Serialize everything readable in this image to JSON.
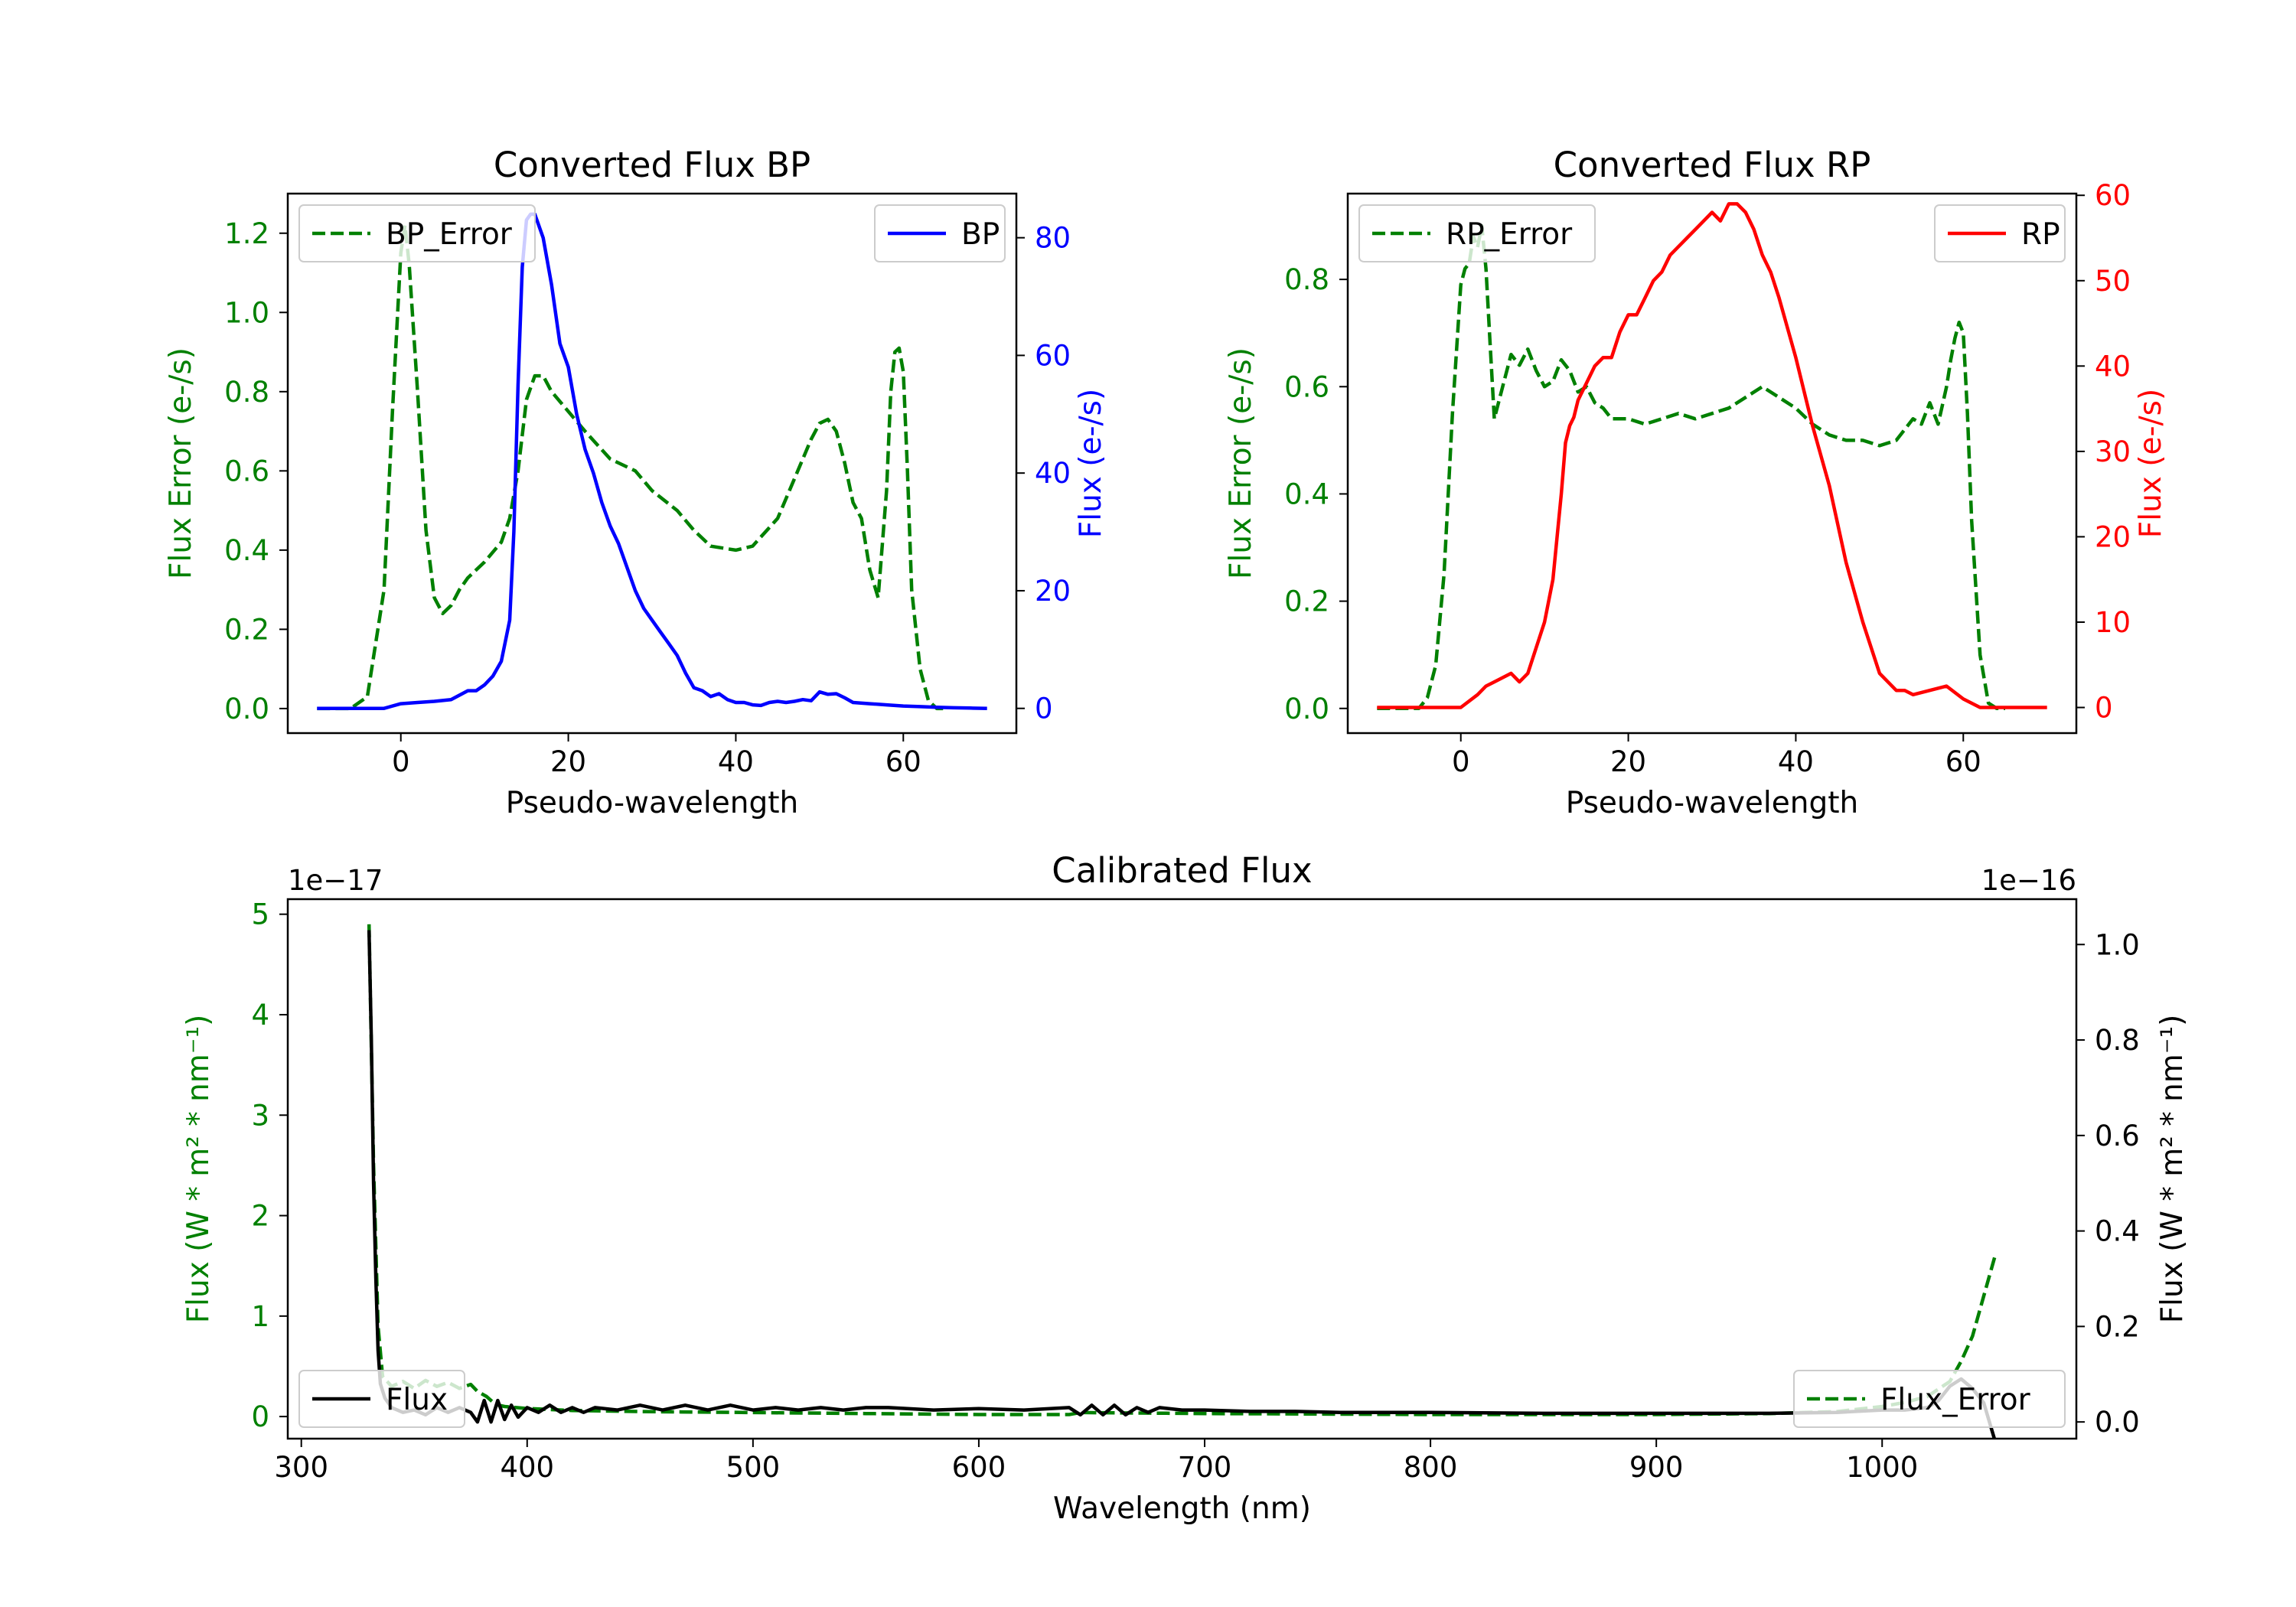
{
  "colors": {
    "bp": "#0000ff",
    "rp": "#ff0000",
    "error": "#008000",
    "flux": "#000000",
    "axis": "#000000",
    "legend_border": "#cccccc"
  },
  "chart_data": [
    {
      "id": "bp",
      "type": "line",
      "title": "Converted Flux BP",
      "xlabel": "Pseudo-wavelength",
      "ylabel_left": "Flux Error (e-/s)",
      "ylabel_right": "Flux (e-/s)",
      "xlim": [
        -13.5,
        73.5
      ],
      "ylim_left": [
        -0.062,
        1.3
      ],
      "ylim_right": [
        -4.2,
        87.5
      ],
      "xticks": [
        0,
        20,
        40,
        60
      ],
      "yticks_left": [
        0.0,
        0.2,
        0.4,
        0.6,
        0.8,
        1.0,
        1.2
      ],
      "yticks_left_labels": [
        "0.0",
        "0.2",
        "0.4",
        "0.6",
        "0.8",
        "1.0",
        "1.2"
      ],
      "yticks_right": [
        0,
        20,
        40,
        60,
        80
      ],
      "yticks_right_labels": [
        "0",
        "20",
        "40",
        "60",
        "80"
      ],
      "legend_left": "BP_Error",
      "legend_right": "BP",
      "series": [
        {
          "name": "BP_Error",
          "axis": "left",
          "style": "dashed",
          "x": [
            -10,
            -6,
            -4,
            -2,
            -1,
            0,
            0.5,
            1,
            2,
            3,
            4,
            5,
            6,
            7,
            8,
            10,
            12,
            13,
            14,
            15,
            16,
            17,
            18,
            20,
            22,
            25,
            28,
            30,
            33,
            35,
            37,
            40,
            42,
            45,
            47,
            49,
            50,
            51,
            52,
            53,
            54,
            55,
            56,
            57,
            58,
            58.5,
            59,
            59.5,
            60,
            60.5,
            61,
            62,
            63,
            64,
            65
          ],
          "y": [
            0.0,
            0.0,
            0.03,
            0.3,
            0.75,
            1.15,
            1.22,
            1.12,
            0.8,
            0.45,
            0.28,
            0.24,
            0.26,
            0.3,
            0.33,
            0.37,
            0.42,
            0.48,
            0.6,
            0.78,
            0.84,
            0.84,
            0.8,
            0.75,
            0.7,
            0.63,
            0.6,
            0.55,
            0.5,
            0.45,
            0.41,
            0.4,
            0.41,
            0.48,
            0.58,
            0.68,
            0.72,
            0.73,
            0.7,
            0.62,
            0.52,
            0.48,
            0.35,
            0.28,
            0.55,
            0.8,
            0.9,
            0.91,
            0.85,
            0.6,
            0.3,
            0.1,
            0.02,
            0.0,
            0.0
          ]
        },
        {
          "name": "BP",
          "axis": "right",
          "style": "solid",
          "x": [
            -10,
            -2,
            0,
            2,
            4,
            6,
            8,
            9,
            10,
            11,
            12,
            13,
            13.5,
            14,
            14.5,
            15,
            15.5,
            16,
            17,
            18,
            19,
            20,
            21,
            22,
            23,
            24,
            25,
            26,
            27,
            28,
            29,
            30,
            31,
            32,
            33,
            34,
            35,
            36,
            37,
            38,
            39,
            40,
            41,
            42,
            43,
            44,
            45,
            46,
            47,
            48,
            49,
            50,
            51,
            52,
            53,
            54,
            56,
            58,
            60,
            62,
            64,
            66,
            68,
            70
          ],
          "y": [
            0,
            0,
            0.8,
            1,
            1.2,
            1.5,
            3,
            3,
            4,
            5.5,
            8,
            15,
            30,
            55,
            75,
            83,
            84,
            84,
            80,
            72,
            62,
            58,
            50,
            44,
            40,
            35,
            31,
            28,
            24,
            20,
            17,
            15,
            13,
            11,
            9,
            6,
            3.5,
            3,
            2,
            2.5,
            1.5,
            1,
            1,
            0.6,
            0.5,
            1,
            1.2,
            1,
            1.2,
            1.5,
            1.3,
            2.8,
            2.4,
            2.5,
            1.8,
            1,
            0.8,
            0.6,
            0.4,
            0.3,
            0.2,
            0.1,
            0.05,
            0
          ]
        }
      ]
    },
    {
      "id": "rp",
      "type": "line",
      "title": "Converted Flux RP",
      "xlabel": "Pseudo-wavelength",
      "ylabel_left": "Flux Error (e-/s)",
      "ylabel_right": "Flux (e-/s)",
      "xlim": [
        -13.5,
        73.5
      ],
      "ylim_left": [
        -0.046,
        0.96
      ],
      "ylim_right": [
        -3,
        60.2
      ],
      "xticks": [
        0,
        20,
        40,
        60
      ],
      "yticks_left": [
        0.0,
        0.2,
        0.4,
        0.6,
        0.8
      ],
      "yticks_left_labels": [
        "0.0",
        "0.2",
        "0.4",
        "0.6",
        "0.8"
      ],
      "yticks_right": [
        0,
        10,
        20,
        30,
        40,
        50,
        60
      ],
      "yticks_right_labels": [
        "0",
        "10",
        "20",
        "30",
        "40",
        "50",
        "60"
      ],
      "legend_left": "RP_Error",
      "legend_right": "RP",
      "series": [
        {
          "name": "RP_Error",
          "axis": "left",
          "style": "dashed",
          "x": [
            -10,
            -5,
            -4,
            -3,
            -2,
            -1,
            0,
            0.5,
            1,
            1.5,
            2,
            2.5,
            3,
            3.5,
            4,
            5,
            6,
            7,
            8,
            9,
            10,
            11,
            12,
            13,
            14,
            15,
            16,
            17,
            18,
            20,
            22,
            24,
            26,
            28,
            30,
            32,
            34,
            36,
            38,
            40,
            42,
            44,
            46,
            48,
            50,
            52,
            53,
            54,
            55,
            56,
            57,
            58,
            58.5,
            59,
            59.5,
            60,
            60.5,
            61,
            62,
            63,
            64,
            65
          ],
          "y": [
            0.0,
            0.0,
            0.02,
            0.08,
            0.25,
            0.55,
            0.79,
            0.82,
            0.83,
            0.88,
            0.86,
            0.9,
            0.82,
            0.68,
            0.54,
            0.6,
            0.66,
            0.64,
            0.67,
            0.63,
            0.6,
            0.61,
            0.65,
            0.63,
            0.59,
            0.6,
            0.57,
            0.56,
            0.54,
            0.54,
            0.53,
            0.54,
            0.55,
            0.54,
            0.55,
            0.56,
            0.58,
            0.6,
            0.58,
            0.56,
            0.53,
            0.51,
            0.5,
            0.5,
            0.49,
            0.5,
            0.52,
            0.54,
            0.53,
            0.57,
            0.53,
            0.6,
            0.65,
            0.69,
            0.72,
            0.7,
            0.55,
            0.35,
            0.1,
            0.01,
            0.0,
            0.0
          ]
        },
        {
          "name": "RP",
          "axis": "right",
          "style": "solid",
          "x": [
            -10,
            -4,
            -2,
            0,
            2,
            3,
            4,
            6,
            7,
            8,
            9,
            10,
            11,
            12,
            12.5,
            13,
            13.5,
            14,
            15,
            16,
            17,
            18,
            19,
            20,
            21,
            22,
            23,
            24,
            25,
            26,
            27,
            28,
            29,
            30,
            31,
            32,
            33,
            34,
            35,
            36,
            37,
            38,
            40,
            42,
            44,
            46,
            48,
            50,
            51,
            52,
            53,
            54,
            56,
            58,
            60,
            62,
            64,
            66,
            68,
            70
          ],
          "y": [
            0,
            0,
            0,
            0,
            1.5,
            2.5,
            3,
            4,
            3,
            4,
            7,
            10,
            15,
            25,
            31,
            33,
            34,
            36,
            38,
            40,
            41,
            41,
            44,
            46,
            46,
            48,
            50,
            51,
            53,
            54,
            55,
            56,
            57,
            58,
            57,
            59,
            59,
            58,
            56,
            53,
            51,
            48,
            41,
            33,
            26,
            17,
            10,
            4,
            3,
            2,
            2,
            1.5,
            2,
            2.5,
            1,
            0,
            0,
            0,
            0,
            0
          ]
        }
      ]
    },
    {
      "id": "cal",
      "type": "line",
      "title": "Calibrated Flux",
      "xlabel": "Wavelength (nm)",
      "ylabel_left": "Flux (W * m² * nm⁻¹)",
      "ylabel_right": "Flux (W * m² * nm⁻¹)",
      "offset_left": "1e−17",
      "offset_right": "1e−16",
      "xlim": [
        294,
        1086
      ],
      "ylim_left": [
        -0.22,
        5.15
      ],
      "ylim_right": [
        -0.035,
        1.095
      ],
      "xticks": [
        300,
        400,
        500,
        600,
        700,
        800,
        900,
        1000
      ],
      "yticks_left": [
        0,
        1,
        2,
        3,
        4,
        5
      ],
      "yticks_left_labels": [
        "0",
        "1",
        "2",
        "3",
        "4",
        "5"
      ],
      "yticks_right": [
        0.0,
        0.2,
        0.4,
        0.6,
        0.8,
        1.0
      ],
      "yticks_right_labels": [
        "0.0",
        "0.2",
        "0.4",
        "0.6",
        "0.8",
        "1.0"
      ],
      "legend_left": "Flux",
      "legend_right": "Flux_Error",
      "series": [
        {
          "name": "Flux_Error",
          "axis": "left",
          "style": "dashed",
          "x": [
            330,
            332,
            334,
            336,
            340,
            345,
            350,
            355,
            360,
            365,
            370,
            375,
            378,
            382,
            386,
            390,
            400,
            420,
            450,
            500,
            550,
            600,
            640,
            645,
            700,
            800,
            900,
            950,
            980,
            1000,
            1010,
            1020,
            1030,
            1035,
            1040,
            1045,
            1050
          ],
          "y": [
            4.9,
            2.5,
            0.9,
            0.4,
            0.3,
            0.35,
            0.28,
            0.36,
            0.3,
            0.34,
            0.28,
            0.32,
            0.25,
            0.2,
            0.12,
            0.1,
            0.08,
            0.06,
            0.05,
            0.04,
            0.03,
            0.02,
            0.02,
            0.04,
            0.03,
            0.02,
            0.02,
            0.03,
            0.05,
            0.1,
            0.14,
            0.2,
            0.35,
            0.55,
            0.8,
            1.2,
            1.6
          ]
        },
        {
          "name": "Flux",
          "axis": "right",
          "style": "solid",
          "x": [
            330,
            331,
            332,
            333,
            334,
            335,
            337,
            340,
            345,
            350,
            355,
            360,
            365,
            370,
            375,
            378,
            381,
            384,
            387,
            390,
            393,
            396,
            400,
            405,
            410,
            415,
            420,
            425,
            430,
            440,
            450,
            460,
            470,
            480,
            490,
            500,
            510,
            520,
            530,
            540,
            550,
            560,
            580,
            600,
            620,
            640,
            645,
            650,
            655,
            660,
            665,
            670,
            675,
            680,
            690,
            700,
            720,
            740,
            760,
            780,
            800,
            850,
            900,
            950,
            980,
            1000,
            1010,
            1020,
            1025,
            1030,
            1035,
            1040,
            1045,
            1050
          ],
          "y": [
            1.03,
            0.8,
            0.5,
            0.3,
            0.15,
            0.08,
            0.05,
            0.03,
            0.02,
            0.025,
            0.015,
            0.03,
            0.02,
            0.03,
            0.02,
            0.0,
            0.045,
            0.0,
            0.045,
            0.005,
            0.035,
            0.01,
            0.03,
            0.02,
            0.035,
            0.02,
            0.03,
            0.02,
            0.03,
            0.025,
            0.035,
            0.025,
            0.035,
            0.025,
            0.035,
            0.025,
            0.03,
            0.025,
            0.03,
            0.025,
            0.03,
            0.03,
            0.025,
            0.028,
            0.025,
            0.03,
            0.015,
            0.035,
            0.015,
            0.035,
            0.015,
            0.03,
            0.02,
            0.03,
            0.025,
            0.025,
            0.022,
            0.022,
            0.02,
            0.02,
            0.02,
            0.018,
            0.018,
            0.018,
            0.02,
            0.025,
            0.025,
            0.03,
            0.045,
            0.075,
            0.09,
            0.07,
            0.04,
            -0.04
          ]
        }
      ]
    }
  ]
}
